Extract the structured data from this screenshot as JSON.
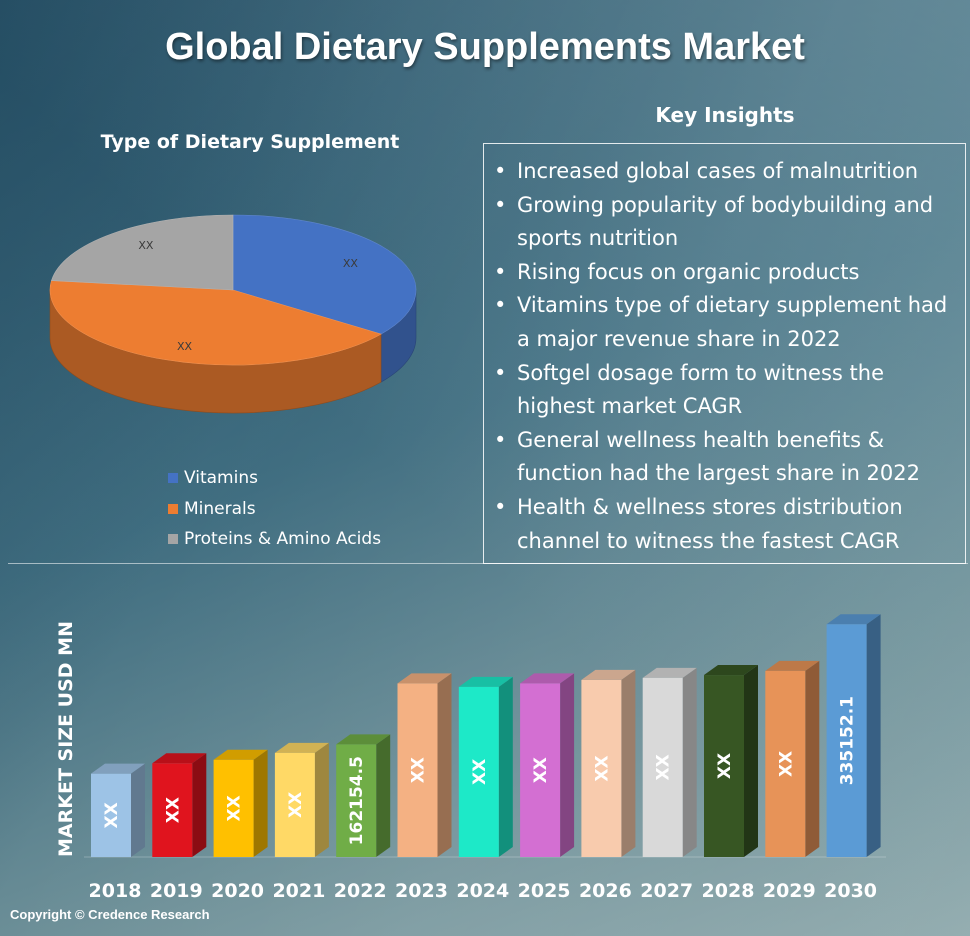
{
  "title": "Global Dietary Supplements Market",
  "copyright": "Copyright © Credence Research",
  "key_insights": {
    "title": "Key Insights",
    "items": [
      "Increased global cases of malnutrition",
      "Growing popularity of bodybuilding and sports nutrition",
      "Rising focus on organic products",
      "Vitamins type of dietary supplement had a major revenue share in 2022",
      "Softgel dosage form to witness the highest market CAGR",
      "General wellness health benefits & function had the largest share in 2022",
      "Health & wellness stores distribution channel to witness the fastest CAGR"
    ]
  },
  "chart_data": [
    {
      "type": "pie",
      "title": "Type of Dietary Supplement",
      "style": "3d",
      "legend": "bottom",
      "categories": [
        "Vitamins",
        "Minerals",
        "Proteins & Amino Acids"
      ],
      "values": [
        35,
        42,
        23
      ],
      "labels": [
        "XX",
        "XX",
        "XX"
      ],
      "colors": [
        "#4472c4",
        "#ed7d31",
        "#a5a5a5"
      ]
    },
    {
      "type": "bar",
      "style": "3d",
      "ylabel": "MARKET SIZE USD MN",
      "xlabel": "",
      "grid": false,
      "categories": [
        "2018",
        "2019",
        "2020",
        "2021",
        "2022",
        "2023",
        "2024",
        "2025",
        "2026",
        "2027",
        "2028",
        "2029",
        "2030"
      ],
      "values": [
        120000,
        135000,
        140000,
        150000,
        162154.5,
        250000,
        245000,
        250000,
        255000,
        258000,
        262000,
        268000,
        335152.1
      ],
      "labels": [
        "XX",
        "XX",
        "XX",
        "XX",
        "162154.5",
        "XX",
        "XX",
        "XX",
        "XX",
        "XX",
        "XX",
        "XX",
        "335152.1"
      ],
      "ylim": [
        0,
        360000
      ],
      "colors": [
        "#9dc3e6",
        "#e0141e",
        "#ffc000",
        "#ffd966",
        "#70ad47",
        "#f4b183",
        "#1de9c8",
        "#d36fd2",
        "#f8cbad",
        "#d9d9d9",
        "#375623",
        "#e79358",
        "#5b9bd5"
      ]
    }
  ]
}
